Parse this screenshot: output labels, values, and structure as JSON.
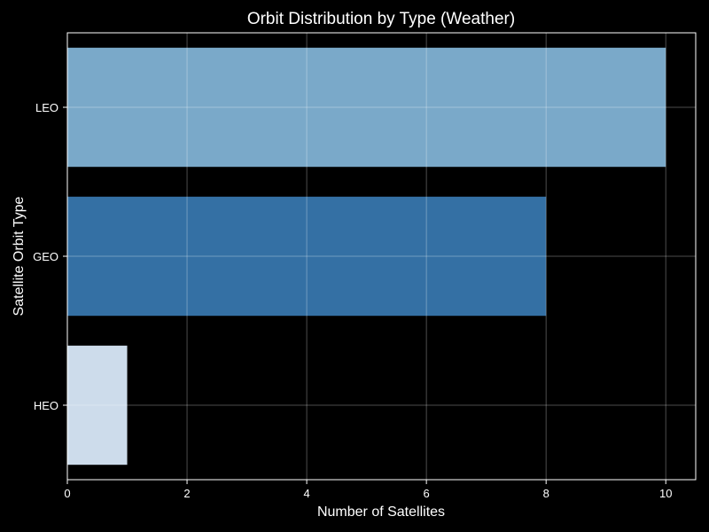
{
  "chart_data": {
    "type": "bar",
    "orientation": "horizontal",
    "title": "Orbit Distribution by Type (Weather)",
    "xlabel": "Number of Satellites",
    "ylabel": "Satellite Orbit Type",
    "categories": [
      "LEO",
      "GEO",
      "HEO"
    ],
    "values": [
      10,
      8,
      1
    ],
    "xlim": [
      0,
      10.5
    ],
    "xticks": [
      "0",
      "2",
      "4",
      "6",
      "8",
      "10"
    ],
    "grid": true,
    "colors": [
      "#7aa9c9",
      "#3470a4",
      "#cddceb"
    ]
  },
  "theme": {
    "background": "#000000",
    "text": "#ffffff",
    "grid": "#5c5c5c",
    "spine": "#ffffff"
  }
}
